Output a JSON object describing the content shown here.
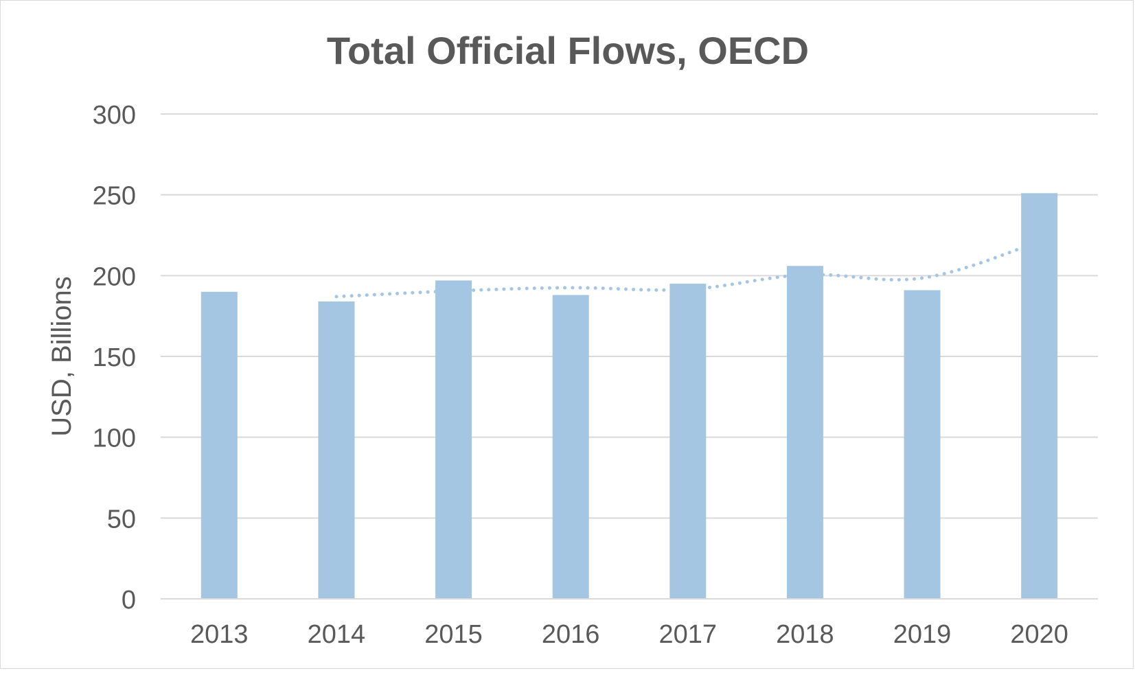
{
  "chart_data": {
    "type": "bar",
    "title": "Total Official Flows, OECD",
    "xlabel": "",
    "ylabel": "USD, Billions",
    "categories": [
      "2013",
      "2014",
      "2015",
      "2016",
      "2017",
      "2018",
      "2019",
      "2020"
    ],
    "values": [
      190,
      184,
      197,
      188,
      195,
      206,
      191,
      251
    ],
    "trendline": {
      "style": "dotted",
      "type": "moving-average",
      "period": 2,
      "values": [
        null,
        187,
        190.5,
        192.5,
        191.5,
        200.5,
        198.5,
        221
      ]
    },
    "ylim": [
      0,
      300
    ],
    "yticks": [
      0,
      50,
      100,
      150,
      200,
      250,
      300
    ],
    "grid": true,
    "legend": "none",
    "colors": {
      "bar": "#a4c6e2",
      "trend": "#a4c6e2",
      "grid": "#d9d9d9",
      "text": "#595959",
      "title": "#595959"
    }
  }
}
